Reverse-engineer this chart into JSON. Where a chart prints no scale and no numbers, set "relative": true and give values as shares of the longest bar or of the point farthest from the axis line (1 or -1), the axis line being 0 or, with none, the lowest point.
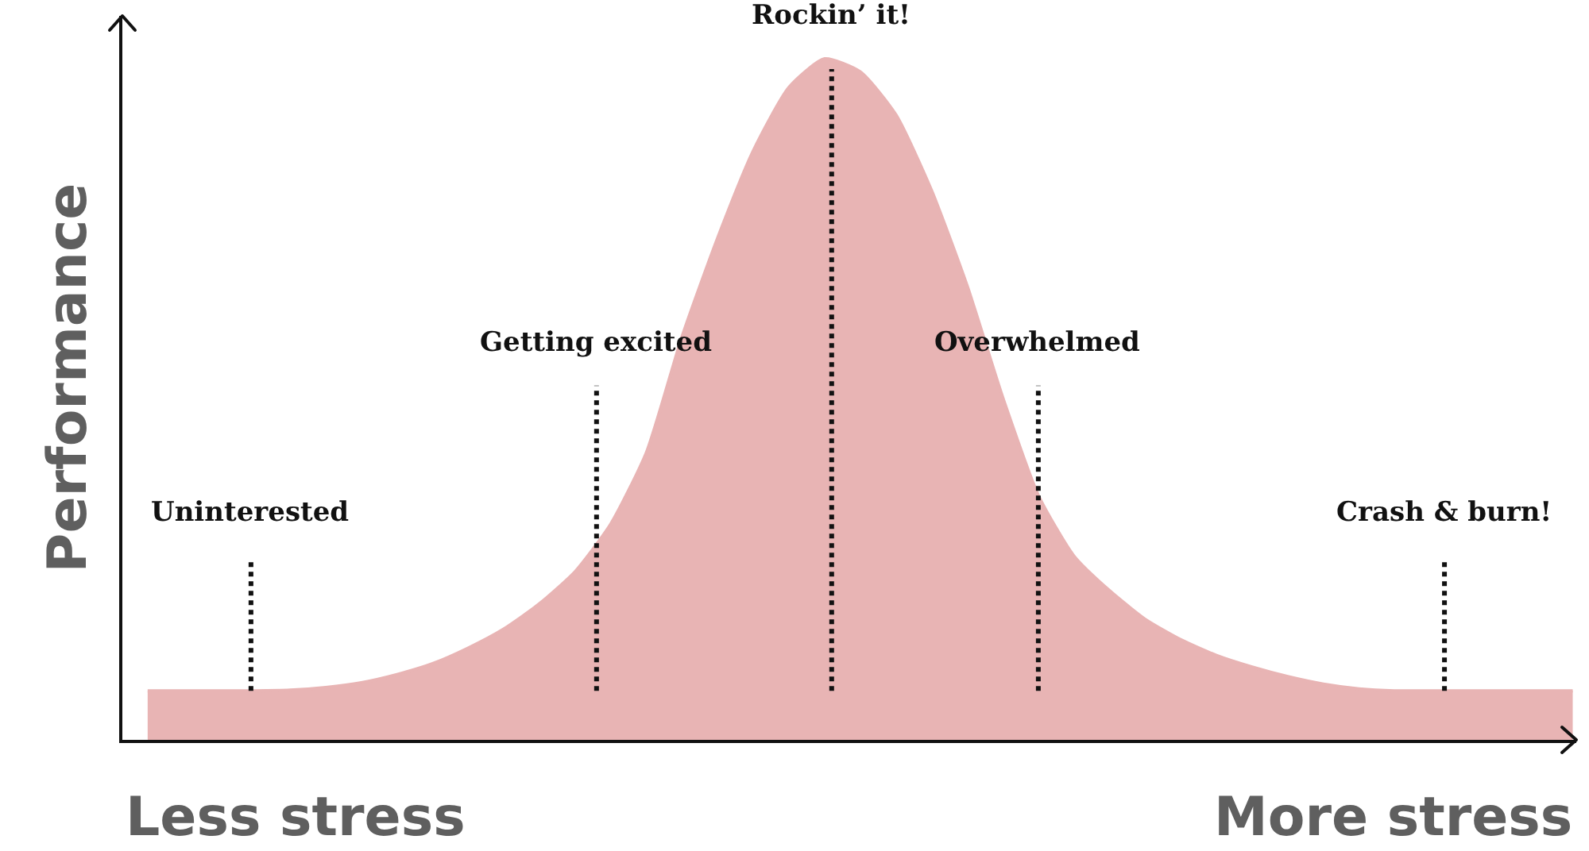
{
  "chart_data": {
    "type": "area",
    "relative": true,
    "ylabel": "Performance",
    "color": "#e8b4b4",
    "categories": [
      null,
      null,
      null,
      null,
      null,
      null,
      null,
      null,
      null,
      null,
      null,
      null,
      null,
      null,
      null,
      null,
      null,
      null,
      null,
      null,
      null,
      null,
      null,
      null,
      null,
      null,
      null,
      null,
      null,
      null,
      null,
      null,
      null,
      null,
      null,
      null,
      null,
      null,
      null,
      null,
      null
    ],
    "values": [
      0.072,
      0.072,
      0.072,
      0.072,
      0.073,
      0.077,
      0.084,
      0.096,
      0.112,
      0.135,
      0.163,
      0.2,
      0.247,
      0.317,
      0.422,
      0.592,
      0.737,
      0.865,
      0.958,
      1.0,
      0.981,
      0.918,
      0.807,
      0.667,
      0.503,
      0.359,
      0.27,
      0.219,
      0.177,
      0.147,
      0.124,
      0.107,
      0.093,
      0.082,
      0.075,
      0.072,
      0.072,
      0.072,
      0.072,
      0.072,
      0.072
    ],
    "annotations": [
      "Uninterested",
      "Getting excited",
      "Rockin’ it!",
      "Overwhelmed",
      "Crash & burn!",
      "Less stress",
      "More stress"
    ],
    "grid": false,
    "legend": false
  }
}
